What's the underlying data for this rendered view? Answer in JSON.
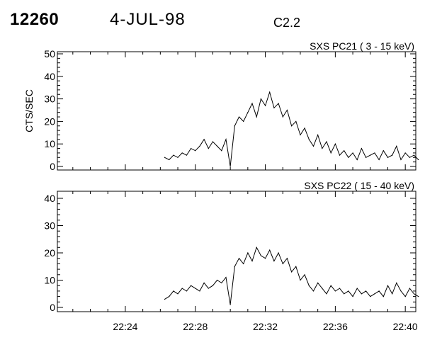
{
  "header": {
    "event_id": "12260",
    "date": "4-JUL-98",
    "goes_class": "C2.2"
  },
  "chart_data": [
    {
      "type": "line",
      "title": "SXS PC21  (  3 - 15 keV)",
      "ylabel": "CTS/SEC",
      "xlabel": "",
      "xlim": [
        "22:20:07",
        "22:40:36"
      ],
      "ylim": [
        0,
        50
      ],
      "yticks": [
        "0",
        "10",
        "20",
        "30",
        "40",
        "50"
      ],
      "xticks": [],
      "x_start": "22:26:15",
      "step_sec": 15,
      "values": [
        4,
        3,
        5,
        4,
        6,
        5,
        8,
        7,
        9,
        12,
        8,
        11,
        9,
        7,
        12,
        0,
        18,
        22,
        20,
        24,
        28,
        22,
        30,
        27,
        33,
        26,
        28,
        22,
        25,
        18,
        20,
        14,
        17,
        12,
        9,
        14,
        8,
        11,
        6,
        10,
        5,
        7,
        4,
        6,
        3,
        8,
        4,
        5,
        6,
        3,
        7,
        4,
        5,
        9,
        3,
        6,
        4,
        5,
        3
      ]
    },
    {
      "type": "line",
      "title": "SXS PC22  ( 15 - 40 keV)",
      "ylabel": "",
      "xlabel": "",
      "xlim": [
        "22:20:07",
        "22:40:36"
      ],
      "ylim": [
        0,
        40
      ],
      "yticks": [
        "0",
        "10",
        "20",
        "30",
        "40"
      ],
      "xticks": [
        "22:24",
        "22:28",
        "22:32",
        "22:36",
        "22:40"
      ],
      "x_start": "22:26:15",
      "step_sec": 15,
      "values": [
        3,
        4,
        6,
        5,
        7,
        6,
        8,
        7,
        6,
        9,
        7,
        8,
        10,
        9,
        11,
        1,
        15,
        18,
        16,
        20,
        17,
        22,
        19,
        18,
        21,
        17,
        20,
        16,
        18,
        13,
        15,
        10,
        12,
        8,
        6,
        9,
        7,
        5,
        8,
        6,
        7,
        5,
        6,
        4,
        7,
        5,
        6,
        4,
        5,
        6,
        4,
        8,
        5,
        9,
        6,
        4,
        7,
        5,
        4
      ]
    }
  ]
}
